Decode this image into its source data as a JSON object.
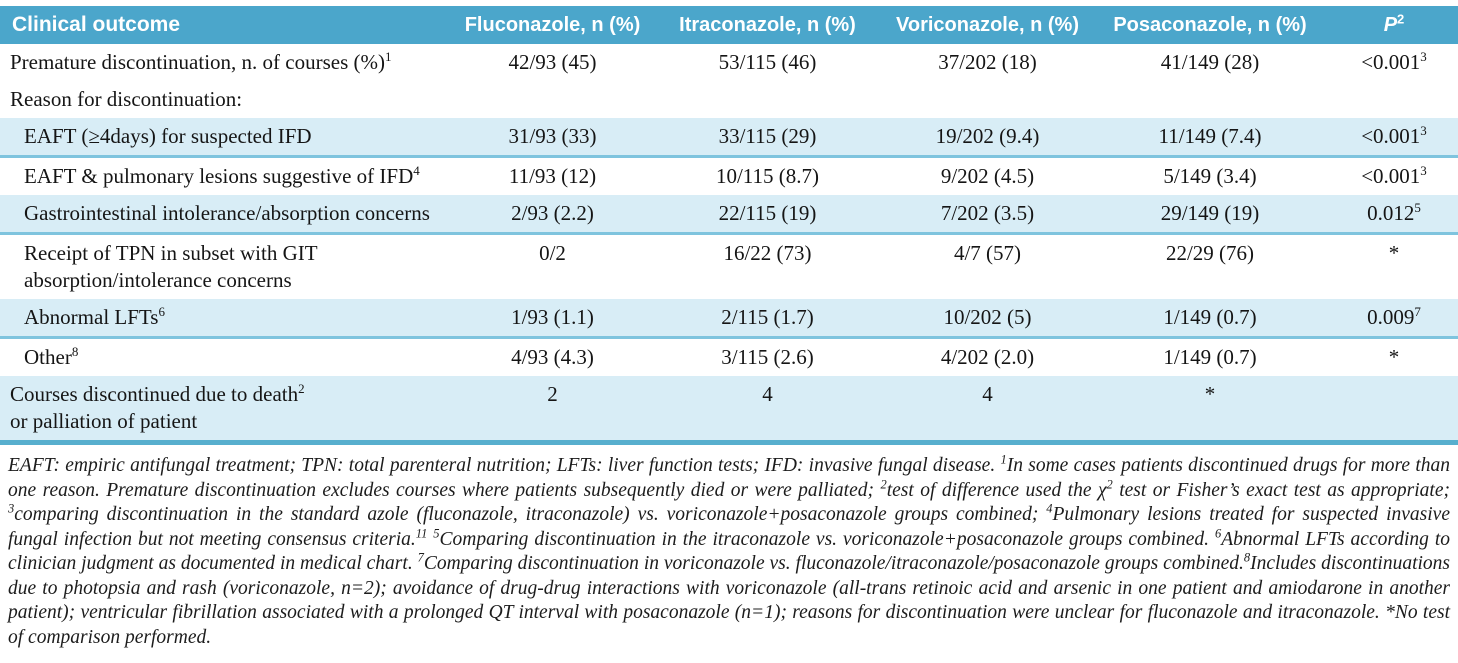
{
  "colors": {
    "header": "#4BA6CB",
    "shade": "#D8EDF6",
    "line": "#7FC4DE",
    "bottom": "#57AFCE",
    "text": "#151515"
  },
  "table": {
    "header": {
      "col0": "Clinical outcome",
      "cols": [
        "Fluconazole, n (%)",
        "Itraconazole, n (%)",
        "Voriconazole, n (%)",
        "Posaconazole, n (%)"
      ],
      "p_label": "P",
      "p_sup": "2"
    },
    "rows": [
      {
        "label": "Premature discontinuation, n. of courses (%)",
        "sup": "1",
        "indent": false,
        "shaded": false,
        "cells": [
          "42/93 (45)",
          "53/115 (46)",
          "37/202 (18)",
          "41/149 (28)"
        ],
        "p": "<0.001",
        "p_sup": "3"
      },
      {
        "label": "Reason for discontinuation:",
        "indent": false,
        "shaded": false,
        "cells": [
          "",
          "",
          "",
          ""
        ],
        "p": ""
      },
      {
        "label": "EAFT (≥4days) for suspected IFD",
        "indent": true,
        "shaded": true,
        "cells": [
          "31/93 (33)",
          "33/115 (29)",
          "19/202 (9.4)",
          "11/149 (7.4)"
        ],
        "p": "<0.001",
        "p_sup": "3"
      },
      {
        "label": "EAFT & pulmonary lesions suggestive of IFD",
        "sup": "4",
        "indent": true,
        "shaded": false,
        "cells": [
          "11/93 (12)",
          "10/115 (8.7)",
          "9/202 (4.5)",
          "5/149 (3.4)"
        ],
        "p": "<0.001",
        "p_sup": "3"
      },
      {
        "label": "Gastrointestinal intolerance/absorption concerns",
        "indent": true,
        "shaded": true,
        "cells": [
          "2/93 (2.2)",
          "22/115 (19)",
          "7/202 (3.5)",
          "29/149 (19)"
        ],
        "p": "0.012",
        "p_sup": "5"
      },
      {
        "label": "Receipt of TPN in subset with GIT",
        "label2": "absorption/intolerance concerns",
        "indent": true,
        "shaded": false,
        "cells": [
          "0/2",
          "16/22 (73)",
          "4/7 (57)",
          "22/29 (76)"
        ],
        "p": "*"
      },
      {
        "label": "Abnormal LFTs",
        "sup": "6",
        "indent": true,
        "shaded": true,
        "cells": [
          "1/93 (1.1)",
          "2/115 (1.7)",
          "10/202 (5)",
          "1/149 (0.7)"
        ],
        "p": "0.009",
        "p_sup": "7"
      },
      {
        "label": "Other",
        "sup": "8",
        "indent": true,
        "shaded": false,
        "cells": [
          "4/93 (4.3)",
          "3/115 (2.6)",
          "4/202 (2.0)",
          "1/149 (0.7)"
        ],
        "p": "*"
      },
      {
        "label": "Courses discontinued due to death",
        "sup": "2",
        "label2": "or palliation of patient",
        "indent": false,
        "shaded": true,
        "last": true,
        "cells": [
          "2",
          "4",
          "4",
          "*"
        ],
        "p": ""
      }
    ]
  },
  "footnote": {
    "segments": [
      {
        "t": "EAFT: empiric antifungal treatment; TPN: total parenteral nutrition; LFTs: liver function tests; IFD: invasive fungal disease. "
      },
      {
        "s": "1"
      },
      {
        "t": "In some cases patients discontinued drugs for more than one reason. Premature discontinuation excludes courses where patients subsequently died or were palliated; "
      },
      {
        "s": "2"
      },
      {
        "t": "test of difference used the χ"
      },
      {
        "s": "2"
      },
      {
        "t": " test or Fisher’s exact test as appropriate; "
      },
      {
        "s": "3"
      },
      {
        "t": "comparing discontinuation in the standard azole (fluconazole, itraconazole) vs. voriconazole+posaconazole groups combined; "
      },
      {
        "s": "4"
      },
      {
        "t": "Pulmonary lesions treated for suspected invasive fungal infection but not meeting consensus criteria."
      },
      {
        "s": "11"
      },
      {
        "t": " "
      },
      {
        "s": "5"
      },
      {
        "t": "Comparing discontinuation in the itraconazole vs. voriconazole+posaconazole groups combined. "
      },
      {
        "s": "6"
      },
      {
        "t": "Abnormal LFTs according to clinician judgment as documented in medical chart. "
      },
      {
        "s": "7"
      },
      {
        "t": "Comparing discontinuation in voriconazole vs. fluconazole/itraconazole/posaconazole groups combined."
      },
      {
        "s": "8"
      },
      {
        "t": "Includes discontinuations due to photopsia and rash (voriconazole, n=2); avoidance of drug-drug interactions with voriconazole (all-trans retinoic acid and arsenic in one patient and amiodarone in another patient); ventricular fibrillation associated with a prolonged QT interval with posaconazole (n=1); reasons for discontinuation were unclear for fluconazole and itraconazole. *No test of comparison performed."
      }
    ]
  }
}
